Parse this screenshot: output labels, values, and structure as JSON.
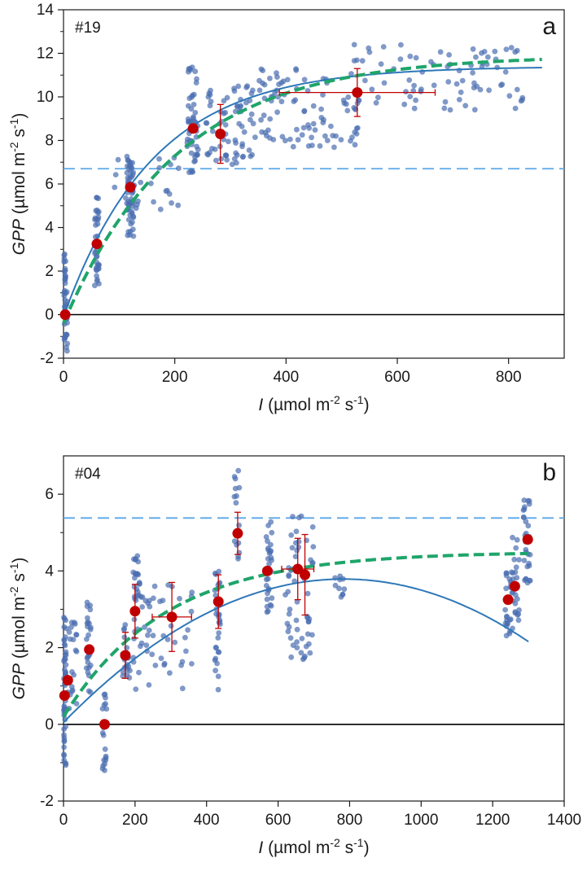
{
  "chart_data": [
    {
      "type": "scatter",
      "panel_letter": "a",
      "panel_id": "#19",
      "xlabel_italic": "I",
      "xlabel_unit": "(µmol m-2 s-1)",
      "ylabel_italic": "GPP",
      "ylabel_unit": "(µmol m-2 s-1)",
      "xlim": [
        0,
        900
      ],
      "ylim": [
        -2,
        14
      ],
      "xticks": [
        0,
        200,
        400,
        600,
        800
      ],
      "yticks": [
        -2,
        0,
        2,
        4,
        6,
        8,
        10,
        12,
        14
      ],
      "grid": false,
      "reference_line_y": 6.7,
      "zero_line_y": 0,
      "point_clusters": [
        {
          "x": 3,
          "x_spread": 4,
          "y_min": -1.9,
          "y_max": 2.8,
          "n": 40
        },
        {
          "x": 60,
          "x_spread": 4,
          "y_min": 1.3,
          "y_max": 5.4,
          "n": 35
        },
        {
          "x": 120,
          "x_spread": 6,
          "y_min": 3.6,
          "y_max": 7.3,
          "n": 55
        },
        {
          "x": 150,
          "x_spread": 60,
          "y_min": 4.6,
          "y_max": 7.6,
          "n": 25
        },
        {
          "x": 232,
          "x_spread": 10,
          "y_min": 6.4,
          "y_max": 11.5,
          "n": 50
        },
        {
          "x": 300,
          "x_spread": 45,
          "y_min": 6.9,
          "y_max": 10.5,
          "n": 70
        },
        {
          "x": 440,
          "x_spread": 90,
          "y_min": 7.6,
          "y_max": 11.4,
          "n": 90
        },
        {
          "x": 680,
          "x_spread": 160,
          "y_min": 9.4,
          "y_max": 12.4,
          "n": 80
        }
      ],
      "means": [
        {
          "x": 3,
          "y": 0,
          "xerr": 0,
          "yerr": 0
        },
        {
          "x": 60,
          "y": 3.25,
          "xerr": 0,
          "yerr": 0
        },
        {
          "x": 120,
          "y": 5.85,
          "xerr": 0,
          "yerr": 0
        },
        {
          "x": 233,
          "y": 8.55,
          "xerr": 0,
          "yerr": 0
        },
        {
          "x": 282,
          "y": 8.3,
          "xerr": 0,
          "yerr": 1.35
        },
        {
          "x": 528,
          "y": 10.2,
          "xerr": 140,
          "yerr": 1.1
        }
      ],
      "curves": [
        {
          "style": "solid",
          "color": "#2f78b8",
          "form": "saturating",
          "params": {
            "a": 11.5,
            "k": 0.0062,
            "c": -0.1
          },
          "x_range": [
            0,
            860
          ]
        },
        {
          "style": "dashed",
          "color": "#1fa56a",
          "form": "saturating",
          "params": {
            "a": 12.3,
            "k": 0.0049,
            "c": -0.4
          },
          "x_range": [
            0,
            860
          ]
        }
      ]
    },
    {
      "type": "scatter",
      "panel_letter": "b",
      "panel_id": "#04",
      "xlabel_italic": "I",
      "xlabel_unit": "(µmol m-2 s-1)",
      "ylabel_italic": "GPP",
      "ylabel_unit": "(µmol m-2 s-1)",
      "xlim": [
        0,
        1400
      ],
      "ylim": [
        -2,
        7
      ],
      "xticks": [
        0,
        200,
        400,
        600,
        800,
        1000,
        1200,
        1400
      ],
      "yticks": [
        -2,
        0,
        2,
        4,
        6
      ],
      "grid": false,
      "reference_line_y": 5.38,
      "zero_line_y": 0,
      "point_clusters": [
        {
          "x": 3,
          "x_spread": 4,
          "y_min": -1.1,
          "y_max": 3.1,
          "n": 45
        },
        {
          "x": 18,
          "x_spread": 20,
          "y_min": 0.0,
          "y_max": 2.8,
          "n": 25
        },
        {
          "x": 70,
          "x_spread": 6,
          "y_min": 0.8,
          "y_max": 3.2,
          "n": 25
        },
        {
          "x": 115,
          "x_spread": 6,
          "y_min": -1.2,
          "y_max": 0.8,
          "n": 20
        },
        {
          "x": 175,
          "x_spread": 12,
          "y_min": 1.2,
          "y_max": 2.7,
          "n": 20
        },
        {
          "x": 205,
          "x_spread": 10,
          "y_min": 1.6,
          "y_max": 4.4,
          "n": 30
        },
        {
          "x": 280,
          "x_spread": 80,
          "y_min": 0.9,
          "y_max": 3.9,
          "n": 45
        },
        {
          "x": 430,
          "x_spread": 8,
          "y_min": 0.9,
          "y_max": 4.0,
          "n": 30
        },
        {
          "x": 485,
          "x_spread": 8,
          "y_min": 4.3,
          "y_max": 6.7,
          "n": 15
        },
        {
          "x": 575,
          "x_spread": 8,
          "y_min": 2.9,
          "y_max": 5.3,
          "n": 30
        },
        {
          "x": 660,
          "x_spread": 40,
          "y_min": 1.6,
          "y_max": 5.6,
          "n": 55
        },
        {
          "x": 770,
          "x_spread": 15,
          "y_min": 3.3,
          "y_max": 3.9,
          "n": 10
        },
        {
          "x": 1245,
          "x_spread": 10,
          "y_min": 2.3,
          "y_max": 4.1,
          "n": 25
        },
        {
          "x": 1265,
          "x_spread": 10,
          "y_min": 2.5,
          "y_max": 4.9,
          "n": 25
        },
        {
          "x": 1295,
          "x_spread": 10,
          "y_min": 3.6,
          "y_max": 6.2,
          "n": 30
        }
      ],
      "means": [
        {
          "x": 3,
          "y": 0.75,
          "xerr": 0,
          "yerr": 0
        },
        {
          "x": 12,
          "y": 1.15,
          "xerr": 0,
          "yerr": 0
        },
        {
          "x": 72,
          "y": 1.95,
          "xerr": 0,
          "yerr": 0
        },
        {
          "x": 115,
          "y": 0.0,
          "xerr": 0,
          "yerr": 0
        },
        {
          "x": 173,
          "y": 1.8,
          "xerr": 0,
          "yerr": 0.6
        },
        {
          "x": 200,
          "y": 2.95,
          "xerr": 0,
          "yerr": 0.7
        },
        {
          "x": 303,
          "y": 2.8,
          "xerr": 55,
          "yerr": 0.9
        },
        {
          "x": 433,
          "y": 3.2,
          "xerr": 0,
          "yerr": 0.7
        },
        {
          "x": 487,
          "y": 4.98,
          "xerr": 0,
          "yerr": 0.55
        },
        {
          "x": 570,
          "y": 4.0,
          "xerr": 0,
          "yerr": 0
        },
        {
          "x": 655,
          "y": 4.05,
          "xerr": 45,
          "yerr": 0.8
        },
        {
          "x": 675,
          "y": 3.9,
          "xerr": 0,
          "yerr": 1.05
        },
        {
          "x": 1243,
          "y": 3.25,
          "xerr": 0,
          "yerr": 0
        },
        {
          "x": 1262,
          "y": 3.6,
          "xerr": 0,
          "yerr": 0
        },
        {
          "x": 1298,
          "y": 4.82,
          "xerr": 0,
          "yerr": 0
        }
      ],
      "curves": [
        {
          "style": "solid",
          "color": "#2f78b8",
          "form": "polynomial",
          "params": {
            "c0": 0.05,
            "c1": 0.00955,
            "c2": -6.1e-06
          },
          "x_range": [
            0,
            1300
          ]
        },
        {
          "style": "dashed",
          "color": "#1fa56a",
          "form": "saturating",
          "params": {
            "a": 4.3,
            "k": 0.0035,
            "c": 0.2
          },
          "x_range": [
            0,
            1300
          ]
        }
      ]
    }
  ],
  "colors": {
    "points": "#4a6db0",
    "means": "#c00000",
    "error_bars": "#c00000",
    "reference_line": "#5aa7e8",
    "zero_line": "#000000",
    "axes": "#1a1a1a"
  }
}
